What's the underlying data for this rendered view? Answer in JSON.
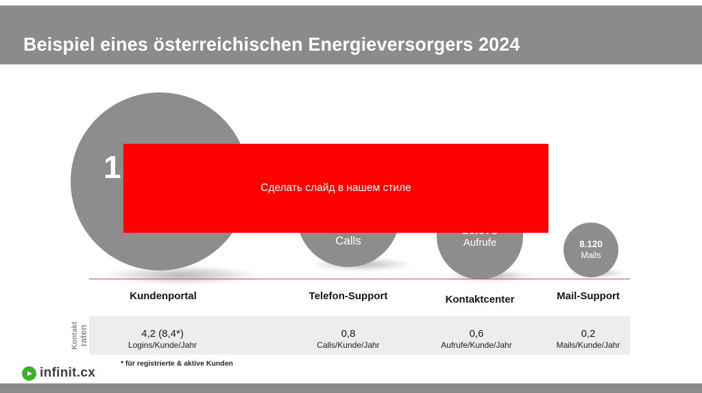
{
  "slide": {
    "title": "Beispiel eines österreichischen Energieversorgers 2024"
  },
  "overlay": {
    "text": "Сделать слайд в нашем стиле",
    "background": "#fe0000"
  },
  "bubbles": [
    {
      "value": "1",
      "unit": "",
      "category": "Kundenportal",
      "rate": "4,2 (8,4*)",
      "rate_unit": "Logins/Kunde/Jahr"
    },
    {
      "value": "",
      "unit": "Calls",
      "category": "Telefon-Support",
      "rate": "0,8",
      "rate_unit": "Calls/Kunde/Jahr"
    },
    {
      "value": "26.078",
      "unit": "Aufrufe",
      "category": "Kontaktcenter",
      "rate": "0,6",
      "rate_unit": "Aufrufe/Kunde/Jahr"
    },
    {
      "value": "8.120",
      "unit": "Mails",
      "category": "Mail-Support",
      "rate": "0,2",
      "rate_unit": "Mails/Kunde/Jahr"
    }
  ],
  "rates_axis": {
    "line1": "Kontakt",
    "line2": "raten"
  },
  "footnote": {
    "text": "* für registrierte & aktive Kunden"
  },
  "logo": {
    "text": "infinit.cx",
    "icon_glyph": "▶"
  },
  "colors": {
    "header_gray": "#8b8b8b",
    "bubble_gray": "#8d8d8d",
    "overlay_red": "#fe0000",
    "band_gray": "#ededed",
    "baseline_red": "#c0504d",
    "logo_green": "#3fae2a"
  },
  "chart_data": {
    "type": "bubble",
    "title": "Beispiel eines österreichischen Energieversorgers 2024",
    "categories": [
      "Kundenportal",
      "Telefon-Support",
      "Kontaktcenter",
      "Mail-Support"
    ],
    "bubble_value_labels_visible": [
      "1",
      "",
      "26.078",
      "8.120"
    ],
    "bubble_units": [
      "",
      "Calls",
      "Aufrufe",
      "Mails"
    ],
    "bubble_sizes_relative": [
      1.0,
      0.58,
      0.48,
      0.31
    ],
    "contact_rates_row_label": "Kontaktraten",
    "contact_rates": [
      "4,2 (8,4*)",
      "0,8",
      "0,6",
      "0,2"
    ],
    "contact_rate_units": [
      "Logins/Kunde/Jahr",
      "Calls/Kunde/Jahr",
      "Aufrufe/Kunde/Jahr",
      "Mails/Kunde/Jahr"
    ],
    "note": "* für registrierte & aktive Kunden",
    "overlay_annotation": "Сделать слайд в нашем стиле"
  }
}
